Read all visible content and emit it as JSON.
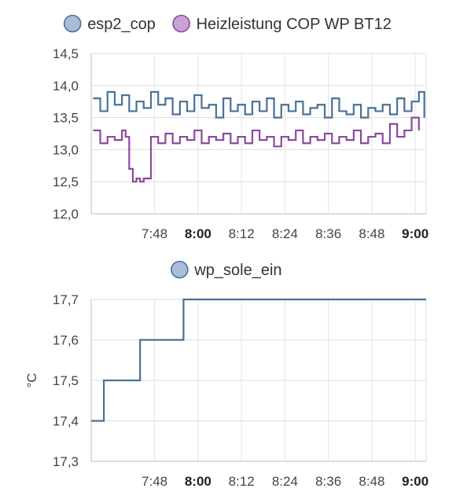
{
  "chart_data": [
    {
      "type": "line",
      "title": "",
      "xlabel": "",
      "ylabel": "",
      "x_ticks": [
        "7:48",
        "8:00",
        "8:12",
        "8:24",
        "8:36",
        "8:48",
        "9:00"
      ],
      "x_ticks_bold": [
        false,
        true,
        false,
        false,
        false,
        false,
        true
      ],
      "y_ticks": [
        "12,0",
        "12,5",
        "13,0",
        "13,5",
        "14,0",
        "14,5"
      ],
      "ylim": [
        12.0,
        14.5
      ],
      "xlim_minutes": [
        -17.5,
        75
      ],
      "grid": true,
      "legend_position": "top",
      "series": [
        {
          "name": "esp2_cop",
          "color": "#4a7098",
          "fill": "#a9bdd6",
          "x_minutes": [
            -17,
            -15,
            -13,
            -11,
            -9,
            -7,
            -5,
            -3,
            -1,
            1,
            3,
            5,
            7,
            9,
            11,
            13,
            15,
            17,
            19,
            21,
            23,
            25,
            27,
            29,
            31,
            33,
            35,
            37,
            39,
            41,
            43,
            45,
            47,
            49,
            51,
            53,
            55,
            57,
            59,
            61,
            63,
            65,
            67,
            69,
            71,
            73,
            74.5
          ],
          "values": [
            13.8,
            13.6,
            13.9,
            13.7,
            13.85,
            13.6,
            13.75,
            13.65,
            13.9,
            13.7,
            13.8,
            13.55,
            13.75,
            13.6,
            13.85,
            13.65,
            13.7,
            13.5,
            13.8,
            13.6,
            13.7,
            13.55,
            13.75,
            13.6,
            13.8,
            13.5,
            13.7,
            13.6,
            13.75,
            13.55,
            13.65,
            13.7,
            13.5,
            13.8,
            13.6,
            13.55,
            13.7,
            13.5,
            13.65,
            13.6,
            13.7,
            13.55,
            13.8,
            13.6,
            13.75,
            13.9,
            13.5
          ]
        },
        {
          "name": "Heizleistung COP WP BT12",
          "color": "#8a4a9e",
          "fill": "#c9a3d4",
          "x_minutes": [
            -17,
            -15,
            -13,
            -11,
            -9,
            -8,
            -7,
            -6,
            -5,
            -4,
            -3,
            -1,
            1,
            3,
            5,
            7,
            9,
            11,
            13,
            15,
            17,
            19,
            21,
            23,
            25,
            27,
            29,
            31,
            33,
            35,
            37,
            39,
            41,
            43,
            45,
            47,
            49,
            51,
            53,
            55,
            57,
            59,
            61,
            63,
            65,
            67,
            69,
            71,
            73
          ],
          "values": [
            13.3,
            13.1,
            13.2,
            13.15,
            13.3,
            13.2,
            12.7,
            12.5,
            12.55,
            12.5,
            12.55,
            13.2,
            13.1,
            13.25,
            13.1,
            13.2,
            13.15,
            13.3,
            13.1,
            13.2,
            13.15,
            13.25,
            13.1,
            13.2,
            13.1,
            13.3,
            13.15,
            13.2,
            13.05,
            13.2,
            13.15,
            13.3,
            13.1,
            13.2,
            13.15,
            13.25,
            13.1,
            13.2,
            13.15,
            13.3,
            13.1,
            13.2,
            13.25,
            13.1,
            13.4,
            13.2,
            13.3,
            13.5,
            13.3
          ]
        }
      ]
    },
    {
      "type": "line",
      "step": true,
      "title": "",
      "xlabel": "",
      "ylabel": "°C",
      "x_ticks": [
        "7:48",
        "8:00",
        "8:12",
        "8:24",
        "8:36",
        "8:48",
        "9:00"
      ],
      "x_ticks_bold": [
        false,
        true,
        false,
        false,
        false,
        false,
        true
      ],
      "y_ticks": [
        "17,3",
        "17,4",
        "17,5",
        "17,6",
        "17,7"
      ],
      "ylim": [
        17.3,
        17.7
      ],
      "xlim_minutes": [
        -17.5,
        75
      ],
      "grid": true,
      "legend_position": "top",
      "series": [
        {
          "name": "wp_sole_ein",
          "color": "#4a7098",
          "fill": "#a9bdd6",
          "x_minutes": [
            -17.5,
            -14,
            -14,
            -4,
            -4,
            8,
            8,
            75
          ],
          "values": [
            17.4,
            17.4,
            17.5,
            17.5,
            17.6,
            17.6,
            17.7,
            17.7
          ]
        }
      ]
    }
  ]
}
